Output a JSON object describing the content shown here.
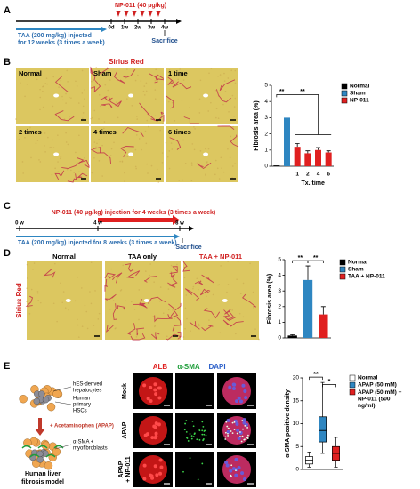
{
  "panels": [
    "A",
    "B",
    "C",
    "D",
    "E"
  ],
  "timeline_a": {
    "treatment": "NP-011 (40 µg/kg)",
    "injury": [
      "TAA (200 mg/kg) injected",
      "for 12 weeks (3 times a week)"
    ],
    "ticks": [
      "0d",
      "1w",
      "2w",
      "3w",
      "4w"
    ],
    "end": "Sacrifice"
  },
  "panel_b": {
    "stain": "Sirius Red",
    "images": [
      "Normal",
      "Sham",
      "1 time",
      "2 times",
      "4 times",
      "6 times"
    ]
  },
  "timeline_c": {
    "treatment": "NP-011 (40 µg/kg) injection for 4 weeks (3 times a week)",
    "injury": "TAA (200 mg/kg) injected for 8 weeks (3 times a week)",
    "ticks": [
      "0 w",
      "4 w",
      "8 w"
    ],
    "end": "Sacrifice"
  },
  "panel_d": {
    "stain": "Sirius Red",
    "images": [
      "Normal",
      "TAA only",
      "TAA + NP-011"
    ]
  },
  "panel_e": {
    "hepatocytes": [
      "hES-derived",
      "hepatocytes"
    ],
    "hscs": [
      "Human",
      "primary",
      "HSCs"
    ],
    "treatment": "+ Acetaminophen (APAP)",
    "myofibroblasts": [
      "α-SMA +",
      "myofibroblasts"
    ],
    "model": [
      "Human liver",
      "fibrosis model"
    ],
    "channels": [
      "ALB",
      "α-SMA",
      "DAPI"
    ],
    "rows": [
      [
        "Mock"
      ],
      [
        "APAP"
      ],
      [
        "APAP",
        "+ NP-011"
      ]
    ]
  },
  "chart_data": [
    {
      "type": "bar",
      "ylabel": "Fibrosis area (%)",
      "xlabel": "Tx. time",
      "categories": [
        null,
        null,
        "1",
        "2",
        "4",
        "6"
      ],
      "ylim": [
        0,
        5
      ],
      "yticks": [
        0,
        1,
        2,
        3,
        4,
        5
      ],
      "legend": "right",
      "series": [
        {
          "name": "Normal",
          "color": "#000000",
          "values": [
            0.05,
            null,
            null,
            null,
            null,
            null
          ],
          "errors": [
            null,
            null,
            null,
            null,
            null,
            null
          ]
        },
        {
          "name": "Sham",
          "color": "#2e86c1",
          "values": [
            null,
            3.0,
            null,
            null,
            null,
            null
          ],
          "errors": [
            null,
            1.1,
            null,
            null,
            null,
            null
          ]
        },
        {
          "name": "NP-011",
          "color": "#e02020",
          "values": [
            null,
            null,
            1.2,
            0.8,
            1.0,
            0.85
          ],
          "errors": [
            null,
            null,
            0.2,
            0.15,
            0.15,
            0.1
          ]
        }
      ],
      "annotations": [
        "**",
        "**"
      ]
    },
    {
      "type": "bar",
      "ylabel": "Fibrosis area (%)",
      "categories": [
        null,
        null,
        null
      ],
      "ylim": [
        0,
        5
      ],
      "yticks": [
        0,
        1,
        2,
        3,
        4,
        5
      ],
      "legend": "right",
      "series": [
        {
          "name": "Normal",
          "color": "#000000",
          "values": [
            0.15,
            null,
            null
          ],
          "errors": [
            0.05,
            null,
            null
          ]
        },
        {
          "name": "Sham",
          "color": "#2e86c1",
          "values": [
            null,
            3.7,
            null
          ],
          "errors": [
            null,
            0.9,
            null
          ]
        },
        {
          "name": "TAA + NP-011",
          "color": "#e02020",
          "values": [
            null,
            null,
            1.5
          ],
          "errors": [
            null,
            null,
            0.5
          ]
        }
      ],
      "annotations": [
        "**",
        "**"
      ]
    },
    {
      "type": "box",
      "ylabel": "α-SMA positive density",
      "ylim": [
        0,
        20
      ],
      "yticks": [
        0,
        5,
        10,
        15,
        20
      ],
      "legend": "right",
      "series": [
        {
          "name": "Normal",
          "color": "#ffffff",
          "min": 0.5,
          "q1": 1.2,
          "median": 2,
          "q3": 2.8,
          "max": 3.8
        },
        {
          "name": "APAP (50 mM)",
          "color": "#2e86c1",
          "min": 3.5,
          "q1": 6,
          "median": 8.5,
          "q3": 11.5,
          "max": 19
        },
        {
          "name": "APAP (50 mM) + NP-011 (500 ng/ml)",
          "color": "#e02020",
          "min": 0.5,
          "q1": 2,
          "median": 3.5,
          "q3": 5,
          "max": 7
        }
      ],
      "annotations": [
        "**",
        "*"
      ]
    }
  ]
}
